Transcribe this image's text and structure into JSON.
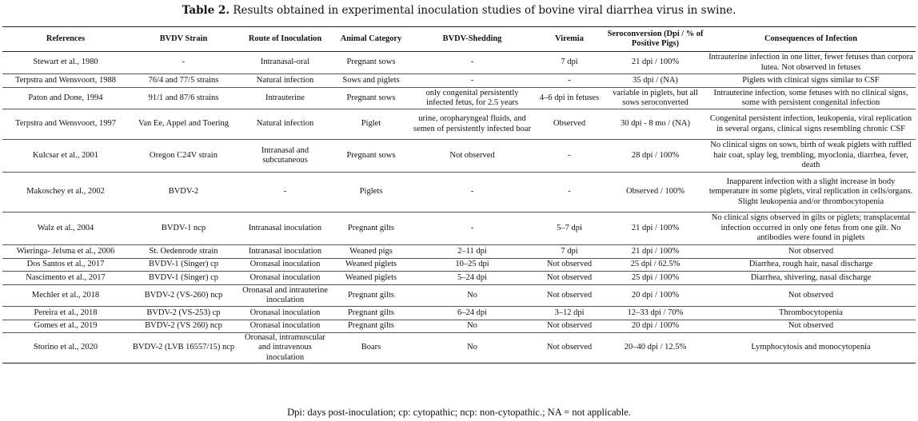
{
  "caption": {
    "label": "Table 2.",
    "text": "Results obtained in experimental inoculation studies of bovine viral diarrhea virus in swine."
  },
  "headers": [
    "References",
    "BVDV Strain",
    "Route of Inoculation",
    "Animal Category",
    "BVDV-Shedding",
    "Viremia",
    "Seroconversion (Dpi / % of Positive Pigs)",
    "Consequences of Infection"
  ],
  "rows": [
    [
      "Stewart et al., 1980",
      "-",
      "Intranasal-oral",
      "Pregnant sows",
      "-",
      "7 dpi",
      "21 dpi / 100%",
      "Intrauterine infection in one litter, fewer fetuses than corpora lutea. Not observed in fetuses"
    ],
    [
      "Terpstra and Wensvoort, 1988",
      "76/4 and 77/5 strains",
      "Natural infection",
      "Sows and piglets",
      "-",
      "-",
      "35 dpi / (NA)",
      "Piglets with clinical signs similar to CSF"
    ],
    [
      "Paton and Done, 1994",
      "91/1 and 87/6 strains",
      "Intrauterine",
      "Pregnant sows",
      "only congenital persistently infected fetus, for 2.5 years",
      "4–6 dpi in fetuses",
      "variable in piglets, but all sows seroconverted",
      "Intrauterine infection, some fetuses with no clinical signs, some with persistent congenital infection"
    ],
    [
      "Terpstra and Wensvoort, 1997",
      "Van Ee, Appel and Toering",
      "Natural infection",
      "Piglet",
      "urine, oropharyngeal fluids, and semen of persistently infected boar",
      "Observed",
      "30 dpi - 8 mo / (NA)",
      "Congenital persistent infection, leukopenia, viral replication in several organs, clinical signs resembling chronic CSF"
    ],
    [
      "Kulcsar et al., 2001",
      "Oregon C24V strain",
      "Intranasal and subcutaneous",
      "Pregnant sows",
      "Not observed",
      "-",
      "28 dpi / 100%",
      "No clinical signs on sows, birth of weak piglets with ruffled hair coat, splay leg, trembling, myoclonia, diarrhea, fever, death"
    ],
    [
      "Makoschey et al., 2002",
      "BVDV-2",
      "-",
      "Piglets",
      "-",
      "-",
      "Observed / 100%",
      "Inapparent infection with a slight increase in body temperature in some piglets, viral replication in cells/organs. Slight leukopenia and/or thrombocytopenia"
    ],
    [
      "Walz et al., 2004",
      "BVDV-1 ncp",
      "Intranasal inoculation",
      "Pregnant gilts",
      "-",
      "5–7 dpi",
      "21 dpi / 100%",
      "No clinical signs observed in gilts or piglets; transplacental infection occurred in only one fetus from one gilt. No antibodies were found in piglets"
    ],
    [
      "Wieringa- Jelsma et al., 2006",
      "St. Oedenrode strain",
      "Intranasal inoculation",
      "Weaned pigs",
      "2–11 dpi",
      "7 dpi",
      "21 dpi / 100%",
      "Not observed"
    ],
    [
      "Dos Santos et al., 2017",
      "BVDV-1 (Singer) cp",
      "Oronasal inoculation",
      "Weaned piglets",
      "10–25 dpi",
      "Not observed",
      "25 dpi / 62.5%",
      "Diarrhea, rough hair, nasal discharge"
    ],
    [
      "Nascimento et al., 2017",
      "BVDV-1 (Singer) cp",
      "Oronasal inoculation",
      "Weaned piglets",
      "5–24 dpi",
      "Not observed",
      "25 dpi / 100%",
      "Diarrhea, shivering, nasal discharge"
    ],
    [
      "Mechler et al., 2018",
      "BVDV-2 (VS-260) ncp",
      "Oronasal and intrauterine inoculation",
      "Pregnant gilts",
      "No",
      "Not observed",
      "20 dpi / 100%",
      "Not observed"
    ],
    [
      "Pereira et al., 2018",
      "BVDV-2 (VS-253) cp",
      "Oronasal inoculation",
      "Pregnant gilts",
      "6–24 dpi",
      "3–12 dpi",
      "12–33 dpi / 70%",
      "Thrombocytopenia"
    ],
    [
      "Gomes et al., 2019",
      "BVDV-2 (VS 260) ncp",
      "Oronasal inoculation",
      "Pregnant gilts",
      "No",
      "Not observed",
      "20 dpi / 100%",
      "Not observed"
    ],
    [
      "Storino et al., 2020",
      "BVDV-2 (LVB 16557/15) ncp",
      "Oronasal, intramuscular and intravenous inoculation",
      "Boars",
      "No",
      "Not observed",
      "20–40 dpi / 12.5%",
      "Lymphocytosis and monocytopenia"
    ]
  ],
  "footnote": "Dpi: days post-inoculation; cp: cytopathic; ncp: non-cytopathic.; NA = not applicable."
}
